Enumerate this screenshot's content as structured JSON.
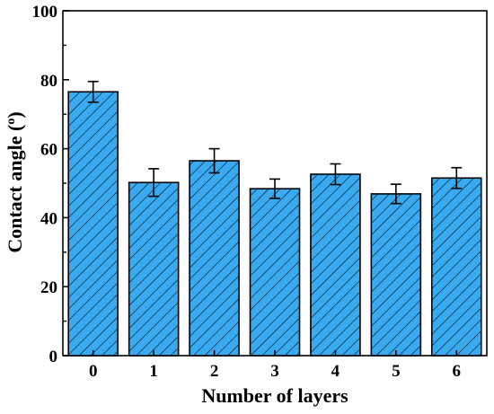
{
  "chart_data": {
    "type": "bar",
    "title": "",
    "xlabel": "Number of layers",
    "ylabel": "Contact angle (",
    "ylabel_sup": "o",
    "ylabel_tail": ")",
    "categories": [
      "0",
      "1",
      "2",
      "3",
      "4",
      "5",
      "6"
    ],
    "values": [
      76.5,
      50.2,
      56.5,
      48.4,
      52.6,
      46.9,
      51.5
    ],
    "errors": [
      3.0,
      4.0,
      3.5,
      2.8,
      3.0,
      2.8,
      3.0
    ],
    "ylim": [
      0,
      100
    ],
    "yticks": [
      "0",
      "20",
      "40",
      "60",
      "80",
      "100"
    ],
    "grid": false,
    "legend": "none",
    "colors": {
      "bar_fill": "#3aaaf0",
      "hatch": "#000000",
      "axis": "#000000"
    }
  }
}
